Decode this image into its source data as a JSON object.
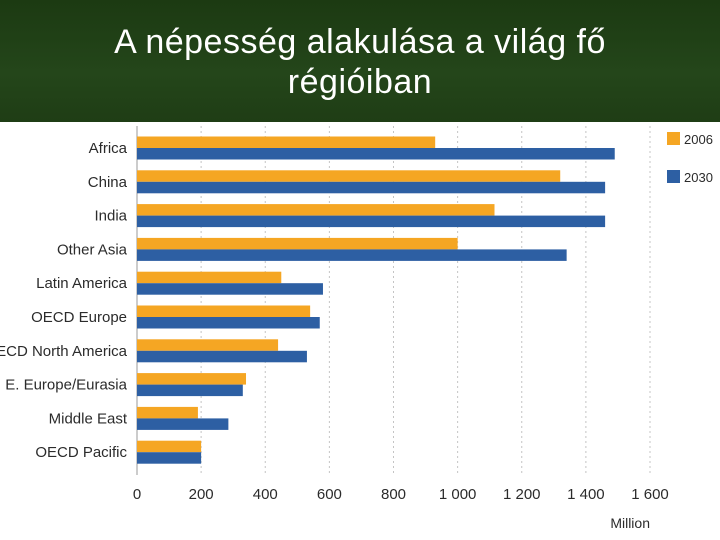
{
  "slide": {
    "title_line1": "A népesség alakulása a világ fő",
    "title_line2": "régióiban"
  },
  "chart_data": {
    "type": "bar",
    "orientation": "horizontal",
    "title": "A népesség alakulása a világ fő régióiban",
    "categories": [
      "Africa",
      "China",
      "India",
      "Other Asia",
      "Latin America",
      "OECD Europe",
      "OECD North America",
      "E. Europe/Eurasia",
      "Middle East",
      "OECD Pacific"
    ],
    "series": [
      {
        "name": "2006",
        "color": "#f5a623",
        "values": [
          930,
          1320,
          1115,
          1000,
          450,
          540,
          440,
          340,
          190,
          200
        ]
      },
      {
        "name": "2030",
        "color": "#2d5fa3",
        "values": [
          1490,
          1460,
          1460,
          1340,
          580,
          570,
          530,
          330,
          285,
          200
        ]
      }
    ],
    "xlim": [
      0,
      1600
    ],
    "x_ticks": [
      "0",
      "200",
      "400",
      "600",
      "800",
      "1 000",
      "1 200",
      "1 400",
      "1 600"
    ],
    "x_unit": "Million",
    "grid": "vertical dashed",
    "legend_position": "top-right"
  }
}
